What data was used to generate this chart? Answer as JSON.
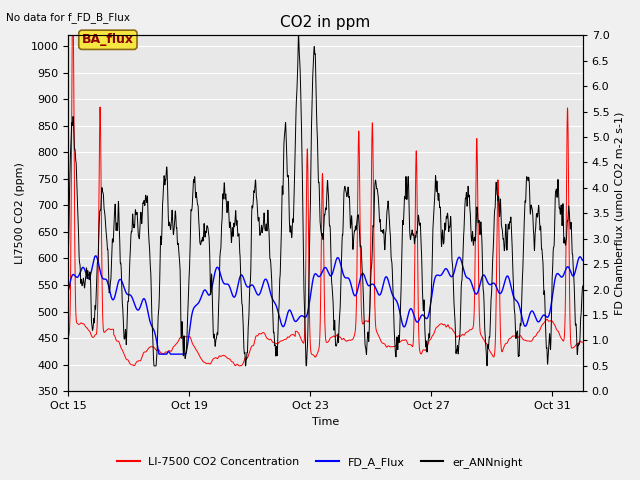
{
  "title": "CO2 in ppm",
  "top_left_text": "No data for f_FD_B_Flux",
  "xlabel": "Time",
  "ylabel_left": "LI7500 CO2 (ppm)",
  "ylabel_right": "FD Chamberflux (umol CO2 m-2 s-1)",
  "ylim_left": [
    350,
    1020
  ],
  "ylim_right": [
    0.0,
    7.0
  ],
  "yticks_left": [
    350,
    400,
    450,
    500,
    550,
    600,
    650,
    700,
    750,
    800,
    850,
    900,
    950,
    1000
  ],
  "yticks_right": [
    0.0,
    0.5,
    1.0,
    1.5,
    2.0,
    2.5,
    3.0,
    3.5,
    4.0,
    4.5,
    5.0,
    5.5,
    6.0,
    6.5,
    7.0
  ],
  "xtick_labels": [
    "Oct 15",
    "Oct 19",
    "Oct 23",
    "Oct 27",
    "Oct 31"
  ],
  "xtick_positions": [
    0,
    4,
    8,
    12,
    16
  ],
  "legend_labels": [
    "LI-7500 CO2 Concentration",
    "FD_A_Flux",
    "er_ANNnight"
  ],
  "line_red_color": "#ff0000",
  "line_blue_color": "#0000ff",
  "line_black_color": "#000000",
  "plot_bg_color": "#e8e8e8",
  "fig_bg_color": "#f0f0f0",
  "grid_color": "#ffffff",
  "title_fontsize": 11,
  "label_fontsize": 8,
  "tick_fontsize": 8,
  "ba_flux_label": "BA_flux",
  "n_days": 17,
  "n_points": 3000
}
